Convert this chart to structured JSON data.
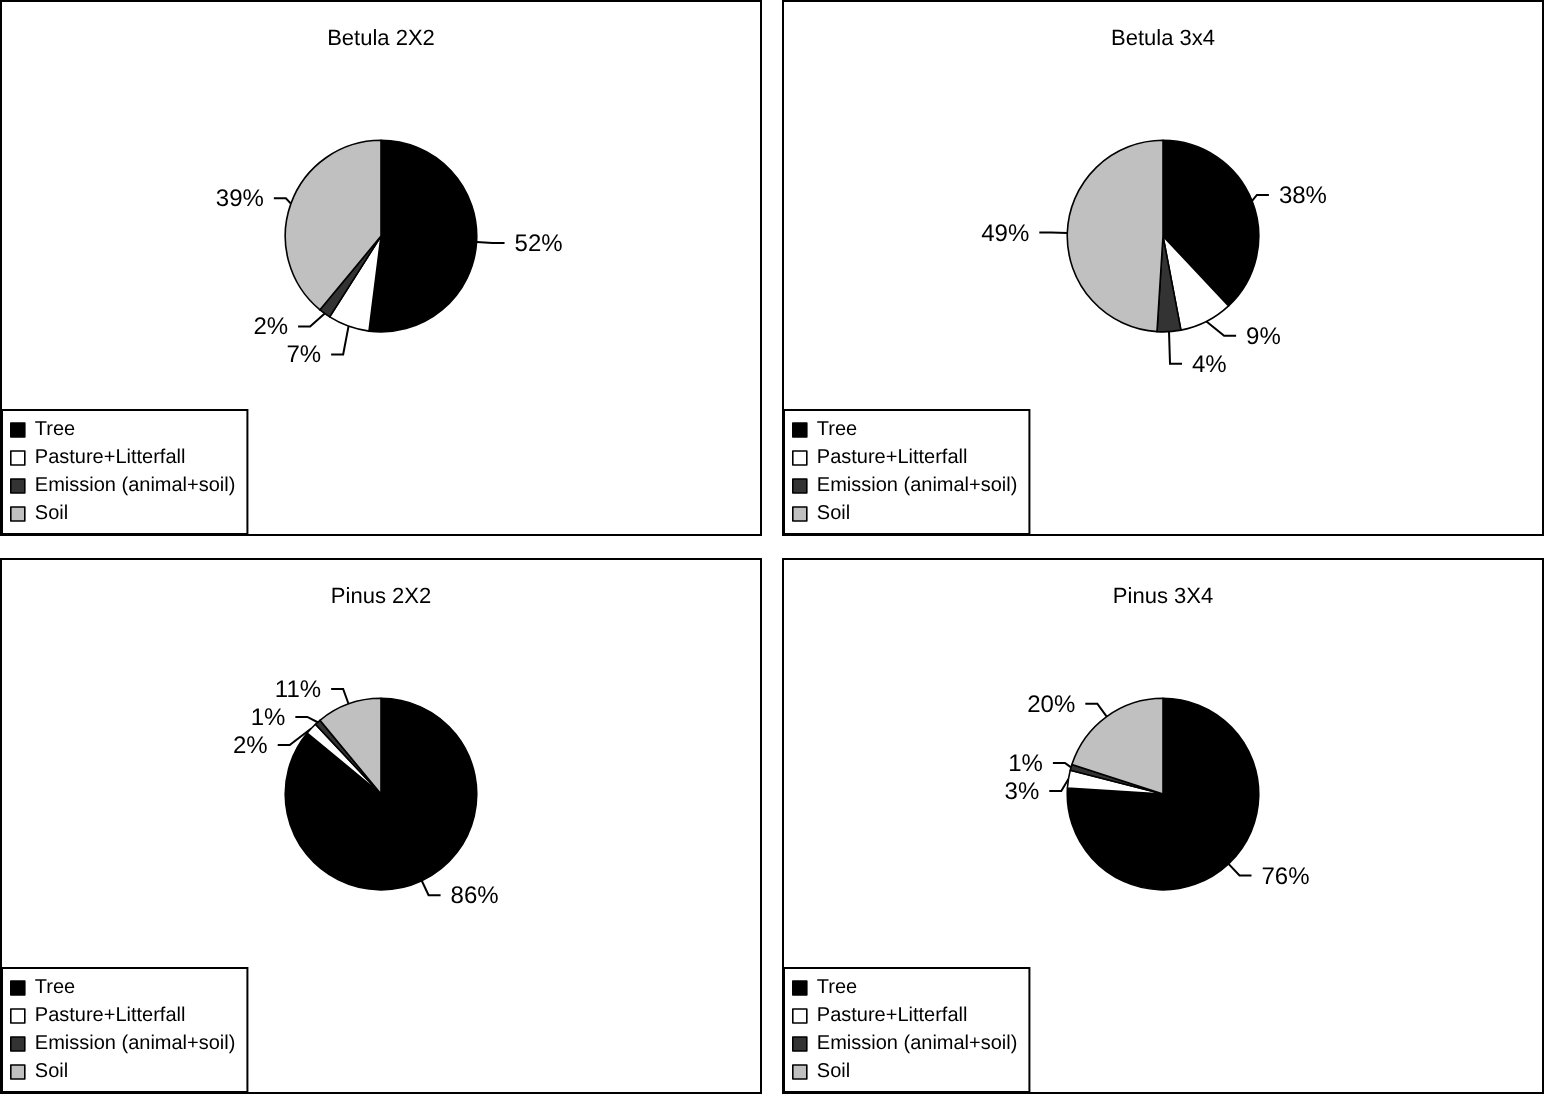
{
  "chart_data": [
    {
      "type": "pie",
      "title": "Betula 2X2",
      "categories": [
        "Tree",
        "Pasture+Litterfall",
        "Emission (animal+soil)",
        "Soil"
      ],
      "values": [
        52,
        7,
        2,
        39
      ],
      "value_labels": [
        "52%",
        "7%",
        "2%",
        "39%"
      ],
      "colors": [
        "#000000",
        "#ffffff",
        "#333333",
        "#c0c0c0"
      ],
      "legend": "bottom left"
    },
    {
      "type": "pie",
      "title": "Betula 3x4",
      "categories": [
        "Tree",
        "Pasture+Litterfall",
        "Emission (animal+soil)",
        "Soil"
      ],
      "values": [
        38,
        9,
        4,
        49
      ],
      "value_labels": [
        "38%",
        "9%",
        "4%",
        "49%"
      ],
      "colors": [
        "#000000",
        "#ffffff",
        "#333333",
        "#c0c0c0"
      ],
      "legend": "bottom left"
    },
    {
      "type": "pie",
      "title": "Pinus 2X2",
      "categories": [
        "Tree",
        "Pasture+Litterfall",
        "Emission (animal+soil)",
        "Soil"
      ],
      "values": [
        86,
        2,
        1,
        11
      ],
      "value_labels": [
        "86%",
        "2%",
        "1%",
        "11%"
      ],
      "colors": [
        "#000000",
        "#ffffff",
        "#333333",
        "#c0c0c0"
      ],
      "legend": "bottom left"
    },
    {
      "type": "pie",
      "title": "Pinus 3X4",
      "categories": [
        "Tree",
        "Pasture+Litterfall",
        "Emission (animal+soil)",
        "Soil"
      ],
      "values": [
        76,
        3,
        1,
        20
      ],
      "value_labels": [
        "76%",
        "3%",
        "1%",
        "20%"
      ],
      "colors": [
        "#000000",
        "#ffffff",
        "#333333",
        "#c0c0c0"
      ],
      "legend": "bottom left"
    }
  ]
}
